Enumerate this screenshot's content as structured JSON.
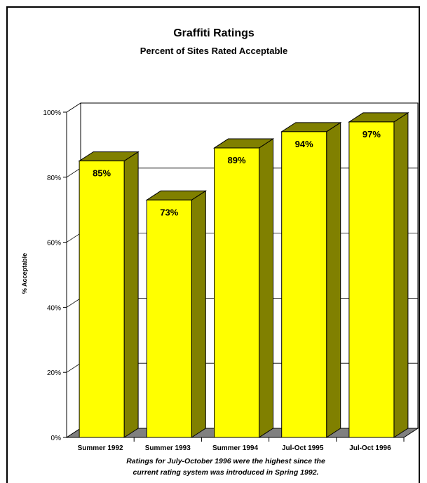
{
  "chart_data": {
    "type": "bar",
    "title": "Graffiti Ratings",
    "subtitle": "Percent of Sites Rated Acceptable",
    "ylabel": "% Acceptable",
    "xlabel": "",
    "categories": [
      "Summer 1992",
      "Summer 1993",
      "Summer 1994",
      "Jul-Oct 1995",
      "Jul-Oct 1996"
    ],
    "values": [
      85,
      73,
      89,
      94,
      97
    ],
    "data_labels": [
      "85%",
      "73%",
      "89%",
      "94%",
      "97%"
    ],
    "ylim": [
      0,
      100
    ],
    "yticks": [
      "0%",
      "20%",
      "40%",
      "60%",
      "80%",
      "100%"
    ],
    "grid": true,
    "style": "3d",
    "bar_color": "#ffff00",
    "bar_side_color": "#808000",
    "floor_color": "#808080"
  },
  "note": {
    "line1": "Ratings for July-October 1996 were the highest since the",
    "line2": "current rating system was introduced in Spring 1992."
  }
}
